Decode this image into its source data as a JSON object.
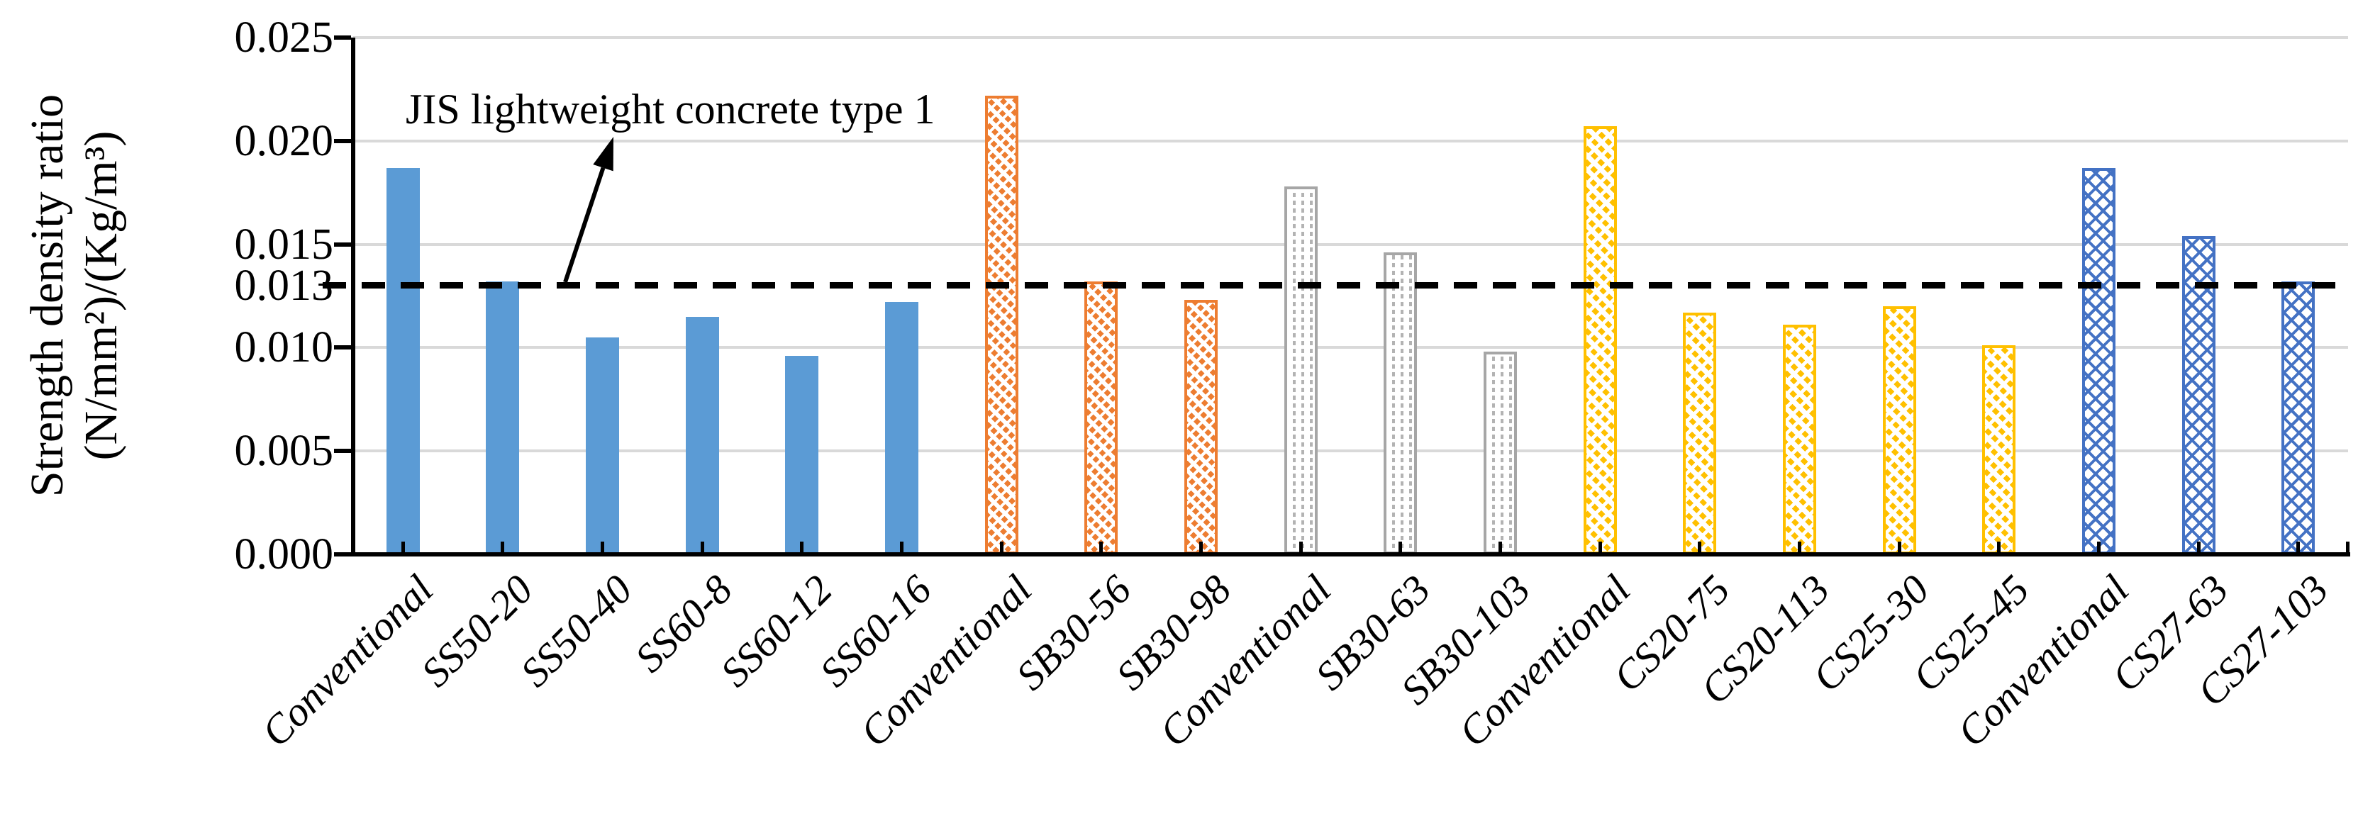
{
  "chart_data": {
    "type": "bar",
    "title": "",
    "ylabel_line1": "Strength density ratio",
    "ylabel_line2": "(N/mm²)/(Kg/m³)",
    "ylim": [
      0.0,
      0.025
    ],
    "ytick_step": 0.005,
    "grid": true,
    "legend": false,
    "yticks": [
      {
        "value": 0.0,
        "label": "0.000"
      },
      {
        "value": 0.005,
        "label": "0.005"
      },
      {
        "value": 0.01,
        "label": "0.010"
      },
      {
        "value": 0.015,
        "label": "0.015"
      },
      {
        "value": 0.02,
        "label": "0.020"
      },
      {
        "value": 0.025,
        "label": "0.025"
      }
    ],
    "reference_line": {
      "value": 0.013,
      "label": "0.013",
      "annotation": "JIS lightweight concrete type 1",
      "style": "dashed",
      "color": "#000000"
    },
    "categories": [
      "Conventional",
      "SS50-20",
      "SS50-40",
      "SS60-8",
      "SS60-12",
      "SS60-16",
      "Conventional",
      "SB30-56",
      "SB30-98",
      "Conventional",
      "SB30-63",
      "SB30-103",
      "Conventional",
      "CS20-75",
      "CS20-113",
      "CS25-30",
      "CS25-45",
      "Conventional",
      "CS27-63",
      "CS27-103"
    ],
    "values": [
      0.0187,
      0.0132,
      0.0105,
      0.0115,
      0.0096,
      0.0122,
      0.0222,
      0.0132,
      0.0123,
      0.0178,
      0.0146,
      0.0098,
      0.0207,
      0.0117,
      0.0111,
      0.012,
      0.0101,
      0.0187,
      0.0154,
      0.0132
    ],
    "bar_styles": [
      "blue-solid",
      "blue-solid",
      "blue-solid",
      "blue-solid",
      "blue-solid",
      "blue-solid",
      "orange-hatch",
      "orange-hatch",
      "orange-hatch",
      "gray-dot",
      "gray-dot",
      "gray-dot",
      "yellow-hatch",
      "yellow-hatch",
      "yellow-hatch",
      "yellow-hatch",
      "yellow-hatch",
      "blue-cross",
      "blue-cross",
      "blue-cross"
    ],
    "style_defs": {
      "blue-solid": {
        "color": "#5B9BD5",
        "pattern": "solid"
      },
      "orange-hatch": {
        "color": "#ED7D31",
        "pattern": "dashed-downward-diagonal"
      },
      "gray-dot": {
        "color": "#A6A6A6",
        "pattern": "dotted-grid"
      },
      "yellow-hatch": {
        "color": "#FFC000",
        "pattern": "dashed-downward-diagonal"
      },
      "blue-cross": {
        "color": "#4472C4",
        "pattern": "diagonal-crosshatch"
      }
    }
  },
  "colors": {
    "gridline": "#D9D9D9",
    "axis": "#000000",
    "reference_line": "#000000",
    "background": "#FFFFFF"
  }
}
